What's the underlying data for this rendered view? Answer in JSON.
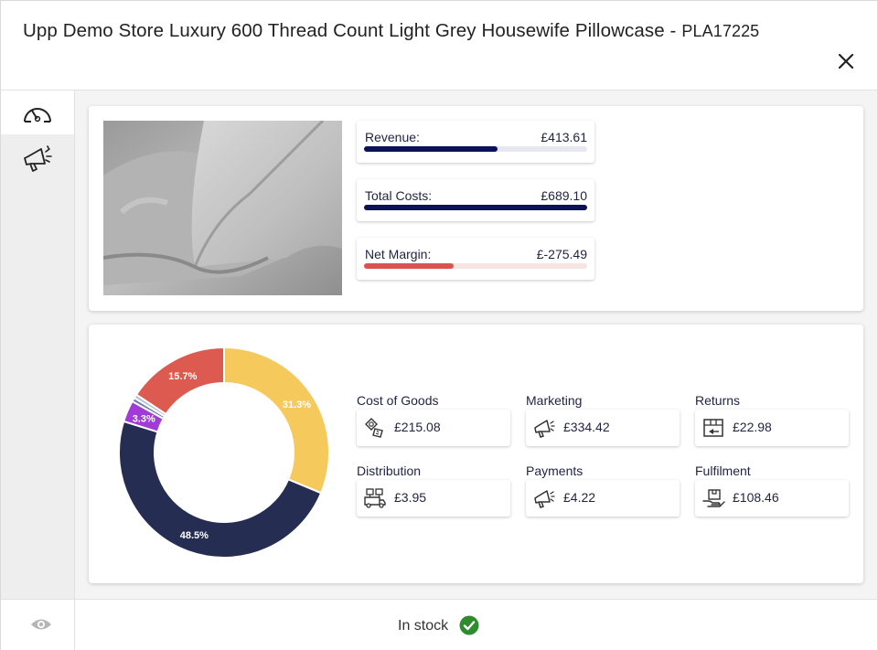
{
  "header": {
    "title": "Upp Demo Store Luxury 600 Thread Count Light Grey Housewife Pillowcase -",
    "sku": "PLA17225",
    "close_icon": "close-icon"
  },
  "sidebar": {
    "items": [
      {
        "icon": "gauge-icon",
        "active": true
      },
      {
        "icon": "megaphone-icon",
        "active": false
      }
    ]
  },
  "metrics": [
    {
      "label": "Revenue:",
      "value": "£413.61",
      "fill": 0.6,
      "color": "#0b1257",
      "track": "#e6e7f0"
    },
    {
      "label": "Total Costs:",
      "value": "£689.10",
      "fill": 1.0,
      "color": "#0b1257",
      "track": "#e6e7f0"
    },
    {
      "label": "Net Margin:",
      "value": "£-275.49",
      "fill": 0.4,
      "color": "#d9534f",
      "track": "#f7e3e2"
    }
  ],
  "chart_data": {
    "type": "pie",
    "labels": [
      "Cost of Goods",
      "Marketing",
      "Returns",
      "Distribution",
      "Payments",
      "Fulfilment"
    ],
    "values": [
      31.3,
      48.5,
      3.3,
      0.6,
      0.6,
      15.7
    ],
    "value_labels": [
      "31.3%",
      "48.5%",
      "3.3%",
      "",
      "",
      "15.7%"
    ],
    "colors": [
      "#f5c95c",
      "#252e52",
      "#a13ad6",
      "#6e7bb0",
      "#b8bfd9",
      "#dc5a4f"
    ]
  },
  "costs": [
    {
      "label": "Cost of Goods",
      "value": "£215.08",
      "icon": "goods-tag-icon"
    },
    {
      "label": "Marketing",
      "value": "£334.42",
      "icon": "megaphone-icon"
    },
    {
      "label": "Returns",
      "value": "£22.98",
      "icon": "returns-box-icon"
    },
    {
      "label": "Distribution",
      "value": "£3.95",
      "icon": "delivery-truck-icon"
    },
    {
      "label": "Payments",
      "value": "£4.22",
      "icon": "megaphone-icon"
    },
    {
      "label": "Fulfilment",
      "value": "£108.46",
      "icon": "hand-package-icon"
    }
  ],
  "footer": {
    "status": "In stock",
    "status_color": "#2e8b2e"
  }
}
